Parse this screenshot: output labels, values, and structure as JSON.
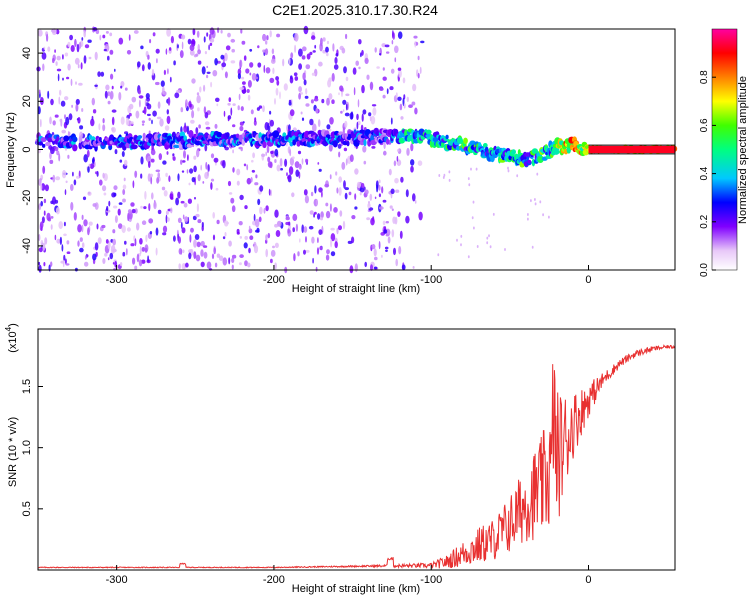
{
  "title": "C2E1.2025.310.17.30.R24",
  "colors": {
    "axis": "#000000",
    "snr_line": "#e83030",
    "background": "#ffffff"
  },
  "chart_data": [
    {
      "type": "heatmap",
      "name": "spectrogram",
      "xlabel": "Height of straight line (km)",
      "ylabel": "Frequency (Hz)",
      "xlim": [
        -350,
        55
      ],
      "ylim": [
        -50,
        50
      ],
      "xticks": [
        -300,
        -200,
        -100,
        0
      ],
      "yticks": [
        -40,
        -20,
        0,
        20,
        40
      ],
      "colorbar": {
        "label": "Normalized spectral amplitude",
        "range": [
          0,
          1
        ],
        "ticks": [
          0.0,
          0.2,
          0.4,
          0.6,
          0.8
        ],
        "tick_labels": [
          "0.0",
          "0.2",
          "0.4",
          "0.6",
          "0.8"
        ]
      },
      "ridge": {
        "description_points_x": [
          -350,
          -300,
          -250,
          -200,
          -150,
          -110,
          -90,
          -70,
          -50,
          -40,
          -30,
          -20,
          -10,
          0,
          55
        ],
        "frequency_y": [
          3,
          3,
          4,
          4,
          5,
          6,
          3,
          0,
          -3,
          -4,
          -2,
          1,
          2,
          0,
          0
        ]
      }
    },
    {
      "type": "line",
      "name": "snr",
      "xlabel": "Height of straight line (km)",
      "ylabel": "SNR (10 * v/v)",
      "scale_label": "(x10",
      "scale_exp": "4",
      "scale_close": ")",
      "xlim": [
        -350,
        55
      ],
      "ylim": [
        0,
        1.97
      ],
      "xticks": [
        -300,
        -200,
        -100,
        0
      ],
      "yticks": [
        0.5,
        1.0,
        1.5
      ],
      "ytick_labels": [
        "0.5",
        "1.0",
        "1.5"
      ],
      "envelope": {
        "x": [
          -350,
          -260,
          -200,
          -140,
          -120,
          -100,
          -90,
          -80,
          -70,
          -60,
          -50,
          -40,
          -30,
          -25,
          -20,
          -10,
          0,
          10,
          20,
          30,
          40,
          50,
          55
        ],
        "base": [
          0.02,
          0.02,
          0.02,
          0.03,
          0.03,
          0.03,
          0.05,
          0.1,
          0.15,
          0.2,
          0.3,
          0.45,
          0.55,
          0.65,
          0.75,
          1.1,
          1.35,
          1.55,
          1.68,
          1.76,
          1.8,
          1.82,
          1.82
        ],
        "amp": [
          0.005,
          0.005,
          0.005,
          0.01,
          0.02,
          0.03,
          0.08,
          0.15,
          0.22,
          0.25,
          0.35,
          0.45,
          0.6,
          0.7,
          0.8,
          0.4,
          0.2,
          0.08,
          0.05,
          0.04,
          0.03,
          0.02,
          0.02
        ]
      }
    }
  ]
}
